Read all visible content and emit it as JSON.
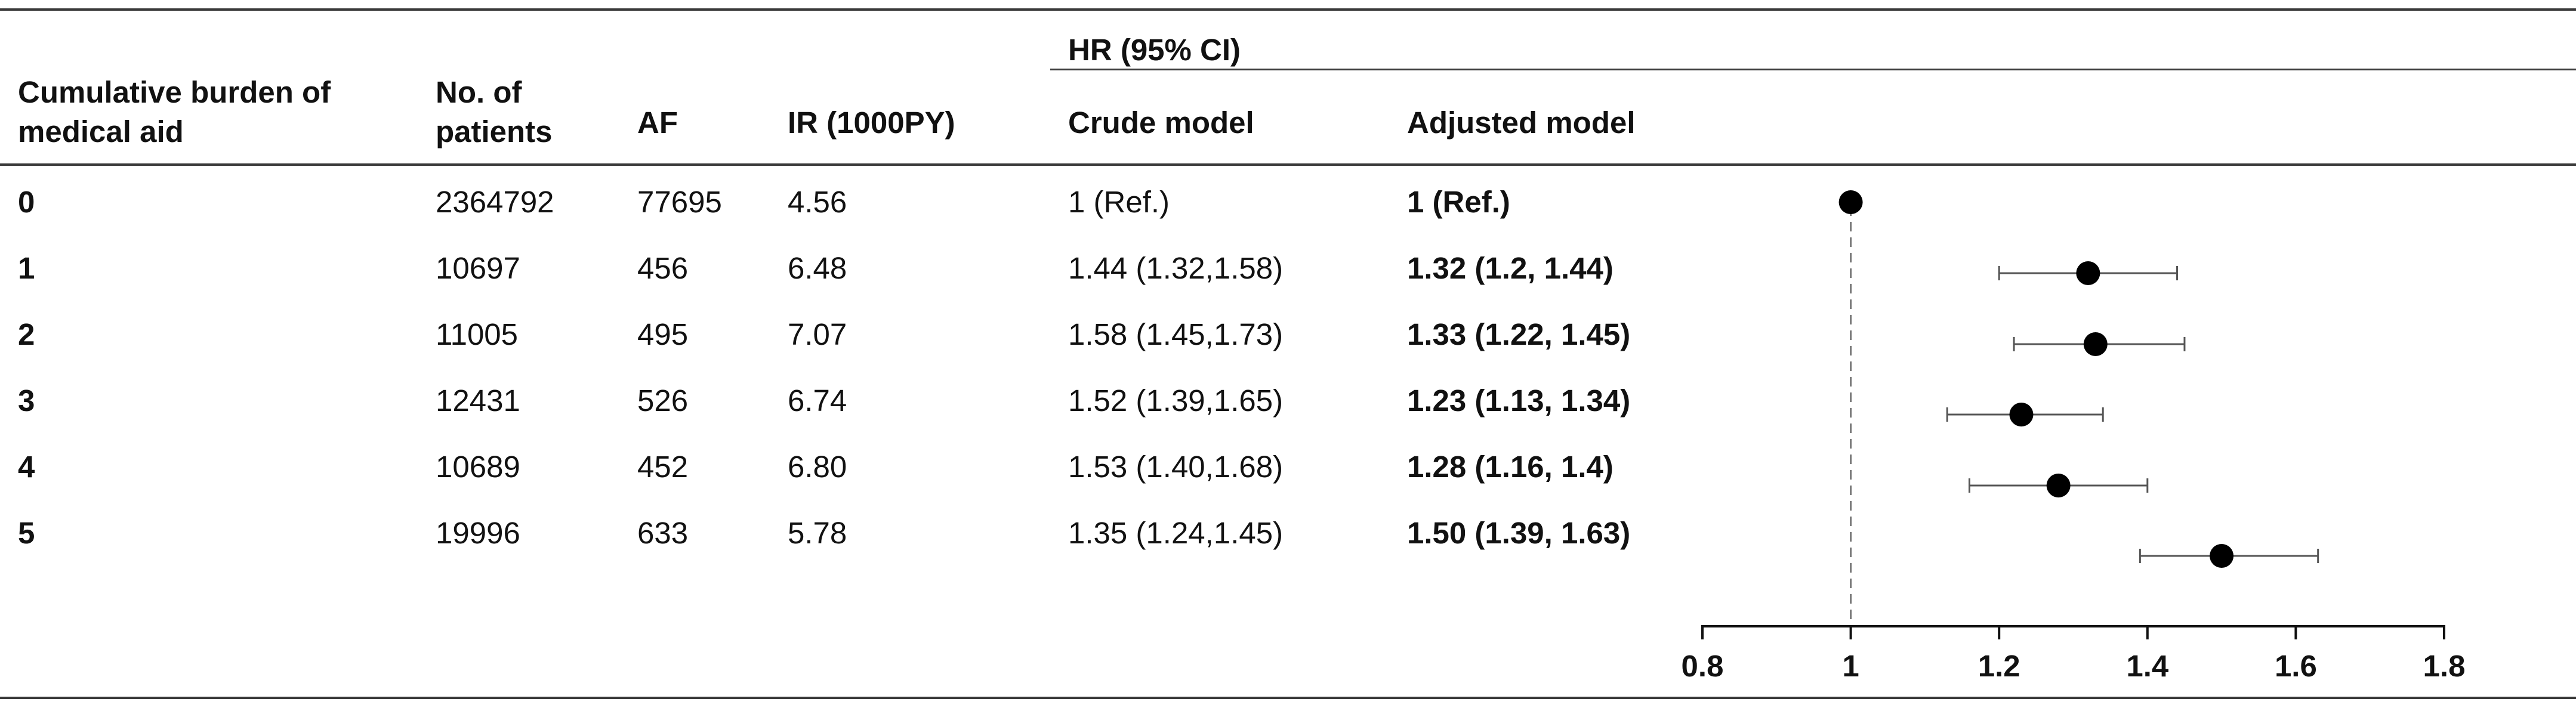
{
  "table": {
    "headers": {
      "group": "HR (95% CI)",
      "burden": "Cumulative burden of medical aid",
      "patients": "No. of patients",
      "af": "AF",
      "ir": "IR (1000PY)",
      "crude": "Crude model",
      "adjusted": "Adjusted model"
    },
    "rows": [
      {
        "burden": "0",
        "patients": "2364792",
        "af": "77695",
        "ir": "4.56",
        "crude": "1 (Ref.)",
        "adjusted": "1 (Ref.)"
      },
      {
        "burden": "1",
        "patients": "10697",
        "af": "456",
        "ir": "6.48",
        "crude": "1.44 (1.32,1.58)",
        "adjusted": "1.32 (1.2, 1.44)"
      },
      {
        "burden": "2",
        "patients": "11005",
        "af": "495",
        "ir": "7.07",
        "crude": "1.58 (1.45,1.73)",
        "adjusted": "1.33 (1.22, 1.45)"
      },
      {
        "burden": "3",
        "patients": "12431",
        "af": "526",
        "ir": "6.74",
        "crude": "1.52 (1.39,1.65)",
        "adjusted": "1.23 (1.13, 1.34)"
      },
      {
        "burden": "4",
        "patients": "10689",
        "af": "452",
        "ir": "6.80",
        "crude": "1.53 (1.40,1.68)",
        "adjusted": "1.28 (1.16, 1.4)"
      },
      {
        "burden": "5",
        "patients": "19996",
        "af": "633",
        "ir": "5.78",
        "crude": "1.35 (1.24,1.45)",
        "adjusted": "1.50 (1.39, 1.63)"
      }
    ]
  },
  "chart_data": {
    "type": "scatter",
    "title": "",
    "xlabel": "",
    "ylabel": "",
    "xlim": [
      0.8,
      1.8
    ],
    "x_ticks": [
      "0.8",
      "1",
      "1.2",
      "1.4",
      "1.6",
      "1.8"
    ],
    "reference_line": 1,
    "grid": false,
    "series": [
      {
        "categories": [
          "0",
          "1",
          "2",
          "3",
          "4",
          "5"
        ],
        "estimate": [
          1,
          1.32,
          1.33,
          1.23,
          1.28,
          1.5
        ],
        "lower": [
          null,
          1.2,
          1.22,
          1.13,
          1.16,
          1.39
        ],
        "upper": [
          null,
          1.44,
          1.45,
          1.34,
          1.4,
          1.63
        ]
      }
    ]
  }
}
